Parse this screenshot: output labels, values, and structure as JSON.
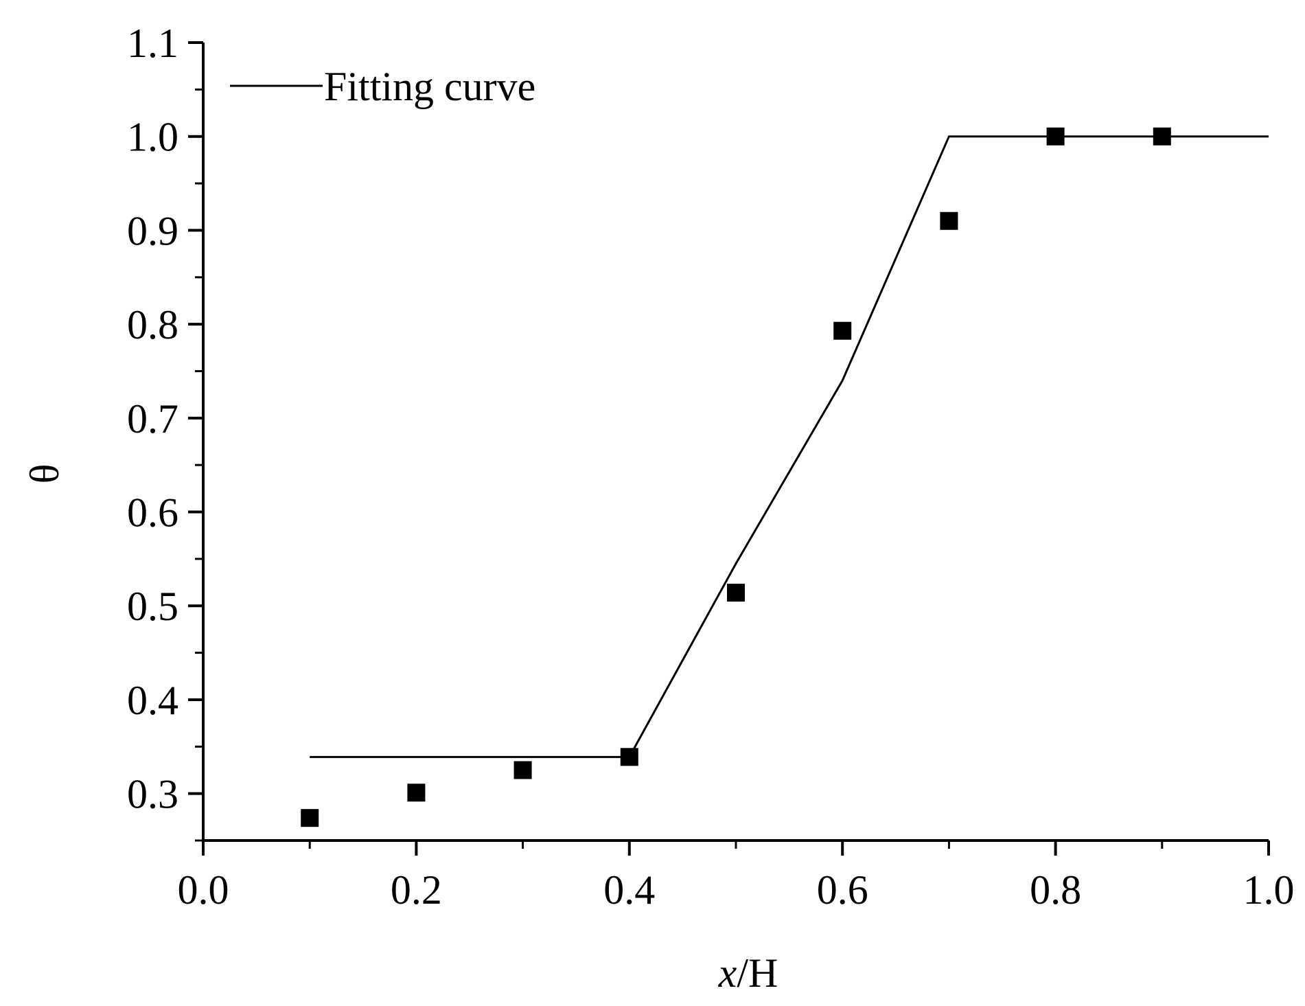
{
  "chart_data": {
    "type": "scatter",
    "title": "",
    "xlabel_italic": "x",
    "xlabel_rest": "/H",
    "ylabel": "θ",
    "xlim": [
      0.0,
      1.0
    ],
    "ylim": [
      0.25,
      1.1
    ],
    "x_ticks": [
      0.0,
      0.2,
      0.4,
      0.6,
      0.8,
      1.0
    ],
    "x_tick_labels": [
      "0.0",
      "0.2",
      "0.4",
      "0.6",
      "0.8",
      "1.0"
    ],
    "y_ticks": [
      0.3,
      0.4,
      0.5,
      0.6,
      0.7,
      0.8,
      0.9,
      1.0,
      1.1
    ],
    "y_tick_labels": [
      "0.3",
      "0.4",
      "0.5",
      "0.6",
      "0.7",
      "0.8",
      "0.9",
      "1.0",
      "1.1"
    ],
    "grid": false,
    "legend_position": "top-left",
    "series": [
      {
        "name": "",
        "kind": "scatter",
        "marker": "square",
        "x": [
          0.1,
          0.2,
          0.3,
          0.4,
          0.5,
          0.6,
          0.7,
          0.8,
          0.9
        ],
        "y": [
          0.274,
          0.301,
          0.325,
          0.339,
          0.514,
          0.793,
          0.91,
          1.0,
          1.0
        ]
      },
      {
        "name": "Fitting curve",
        "kind": "line",
        "x": [
          0.1,
          0.4,
          0.5,
          0.6,
          0.7,
          1.0
        ],
        "y": [
          0.339,
          0.339,
          0.545,
          0.74,
          1.0,
          1.0
        ]
      }
    ],
    "colors": {
      "line": "#000000",
      "marker": "#000000",
      "axis": "#000000"
    }
  }
}
